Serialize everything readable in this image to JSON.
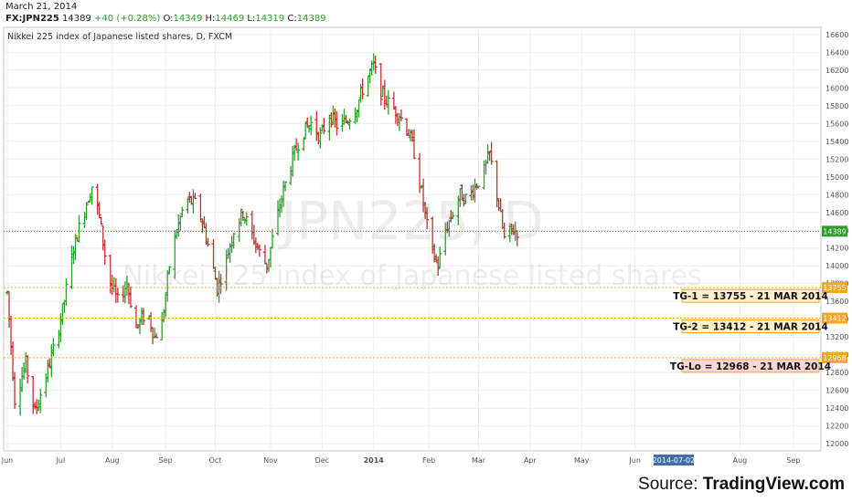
{
  "header": {
    "date": "March 21, 2014",
    "symbol": "FX:JPN225",
    "last": "14389",
    "change": "+40 (+0.28%)",
    "o_label": "O:",
    "o": "14349",
    "h_label": "H:",
    "h": "14469",
    "l_label": "L:",
    "l": "14319",
    "c_label": "C:",
    "c": "14389"
  },
  "chart_data": {
    "type": "ohlc",
    "title": "Nikkei 225 index of Japanese listed shares, D, FXCM",
    "watermark_symbol": "JPN225, D",
    "watermark_name": "Nikkei 225 index of Japanese listed shares",
    "ylim": [
      11920,
      16680
    ],
    "y_ticks": [
      12000,
      12200,
      12400,
      12600,
      12800,
      13000,
      13200,
      13400,
      13600,
      13800,
      14000,
      14200,
      14400,
      14600,
      14800,
      15000,
      15200,
      15400,
      15600,
      15800,
      16000,
      16200,
      16400,
      16600
    ],
    "x_ticks": [
      {
        "label": "Jun",
        "day": 0
      },
      {
        "label": "Jul",
        "day": 29
      },
      {
        "label": "Aug",
        "day": 57
      },
      {
        "label": "Sep",
        "day": 86
      },
      {
        "label": "Oct",
        "day": 113
      },
      {
        "label": "Nov",
        "day": 143
      },
      {
        "label": "Dec",
        "day": 171
      },
      {
        "label": "2014",
        "day": 199
      },
      {
        "label": "Feb",
        "day": 229
      },
      {
        "label": "Mar",
        "day": 256
      },
      {
        "label": "Apr",
        "day": 284
      },
      {
        "label": "May",
        "day": 312
      },
      {
        "label": "Jun",
        "day": 341
      },
      {
        "label": "Aug",
        "day": 398
      },
      {
        "label": "Sep",
        "day": 427
      }
    ],
    "x_highlight": {
      "label": "2014-07-02",
      "day": 362
    },
    "x_domain_days": [
      0,
      440
    ],
    "last_price": 14389,
    "levels": [
      {
        "value": 13755,
        "label": "13755",
        "text": "TG-1 = 13755 - 21 MAR 2014",
        "color": "#f5a623",
        "fill": "#fff1cc"
      },
      {
        "value": 13412,
        "label": "13412",
        "text": "TG-2 = 13412 - 21 MAR 2014",
        "color": "#f5a623",
        "fill": "#fff1cc"
      },
      {
        "value": 12968,
        "label": "12968",
        "text": "TG-Lo = 12968 - 21 MAR 2014",
        "color": "#f5a623",
        "fill": "#ffd6d6"
      }
    ],
    "anchors": [
      [
        0,
        13700
      ],
      [
        4,
        12500
      ],
      [
        10,
        12900
      ],
      [
        15,
        12350
      ],
      [
        20,
        12700
      ],
      [
        25,
        13050
      ],
      [
        30,
        13500
      ],
      [
        36,
        14200
      ],
      [
        42,
        14650
      ],
      [
        46,
        14900
      ],
      [
        50,
        14550
      ],
      [
        55,
        13850
      ],
      [
        60,
        13600
      ],
      [
        65,
        13800
      ],
      [
        70,
        13300
      ],
      [
        76,
        13500
      ],
      [
        80,
        13200
      ],
      [
        84,
        13350
      ],
      [
        88,
        14000
      ],
      [
        92,
        14400
      ],
      [
        97,
        14750
      ],
      [
        102,
        14700
      ],
      [
        106,
        14500
      ],
      [
        110,
        14150
      ],
      [
        114,
        13750
      ],
      [
        118,
        14000
      ],
      [
        123,
        14400
      ],
      [
        128,
        14600
      ],
      [
        132,
        14400
      ],
      [
        137,
        14150
      ],
      [
        141,
        14000
      ],
      [
        146,
        14500
      ],
      [
        150,
        14850
      ],
      [
        155,
        15200
      ],
      [
        160,
        15500
      ],
      [
        165,
        15600
      ],
      [
        170,
        15450
      ],
      [
        175,
        15700
      ],
      [
        180,
        15550
      ],
      [
        185,
        15650
      ],
      [
        190,
        15800
      ],
      [
        194,
        16050
      ],
      [
        199,
        16250
      ],
      [
        203,
        15950
      ],
      [
        208,
        15800
      ],
      [
        213,
        15700
      ],
      [
        218,
        15500
      ],
      [
        222,
        15200
      ],
      [
        226,
        14700
      ],
      [
        230,
        14200
      ],
      [
        234,
        14000
      ],
      [
        238,
        14400
      ],
      [
        242,
        14600
      ],
      [
        246,
        14800
      ],
      [
        250,
        14750
      ],
      [
        254,
        14900
      ],
      [
        258,
        15000
      ],
      [
        262,
        15250
      ],
      [
        266,
        14800
      ],
      [
        270,
        14300
      ],
      [
        274,
        14400
      ],
      [
        278,
        14389
      ]
    ],
    "grid": true
  },
  "footer": {
    "source_prefix": "Source: ",
    "source_name": "TradingView.com"
  }
}
